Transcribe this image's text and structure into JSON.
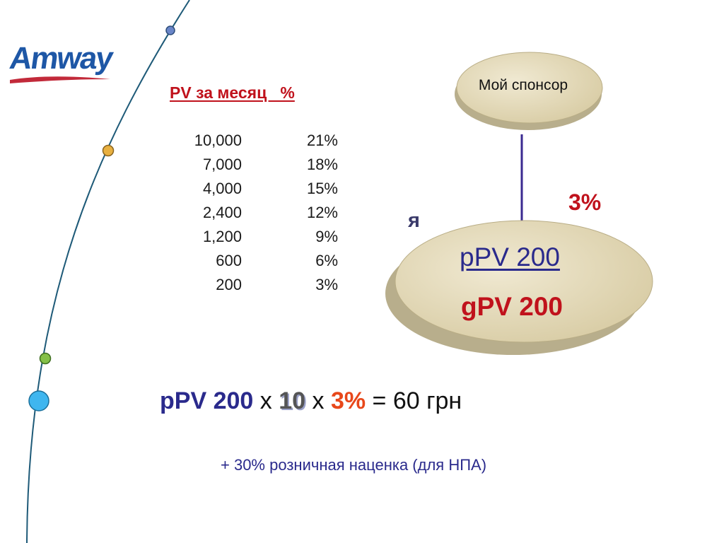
{
  "logo": {
    "text": "Amway"
  },
  "pv_table": {
    "header": "PV за месяц   %",
    "rows": [
      {
        "pv": "10,000",
        "pct": "21%"
      },
      {
        "pv": "7,000",
        "pct": "18%"
      },
      {
        "pv": "4,000",
        "pct": "15%"
      },
      {
        "pv": "2,400",
        "pct": "12%"
      },
      {
        "pv": "1,200",
        "pct": "9%"
      },
      {
        "pv": "600",
        "pct": "6%"
      },
      {
        "pv": "200",
        "pct": "3%"
      }
    ]
  },
  "diagram": {
    "sponsor_label": "Мой спонсор",
    "me_label": "я",
    "bonus_percent": "3%",
    "ppv": "pPV 200",
    "gpv": "gPV 200"
  },
  "formula": {
    "ppv": "pPV 200",
    "times1": " х ",
    "factor": "10",
    "times2": " х ",
    "percent": "3%",
    "equals": " = 60 грн"
  },
  "note": "+ 30% розничная наценка (для НПА)",
  "colors": {
    "red": "#c0121c",
    "blue": "#2a2a8c",
    "orange": "#e8471a",
    "oval_fill": "#e6dcc0",
    "brand_blue": "#1e57a6"
  }
}
